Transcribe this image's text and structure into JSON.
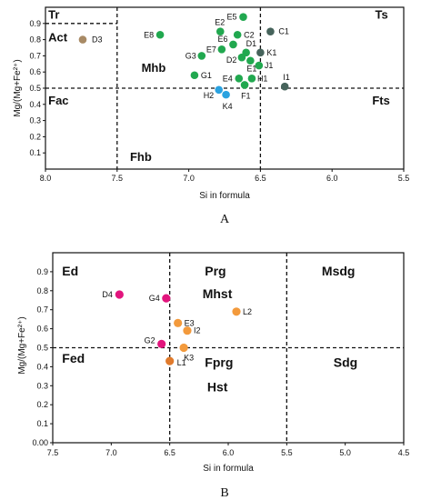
{
  "chart_data": [
    {
      "type": "scatter",
      "panel_label": "A",
      "xlabel": "Si in formula",
      "ylabel": "Mg/(Mg+Fe²⁺)",
      "xlim": [
        8.0,
        5.5
      ],
      "ylim": [
        0.0,
        1.0
      ],
      "x_ticks": [
        "8.0",
        "7.5",
        "7.0",
        "6.5",
        "6.0",
        "5.5"
      ],
      "y_ticks": [
        "0.1",
        "0.2",
        "0.3",
        "0.4",
        "0.5",
        "0.6",
        "0.7",
        "0.8",
        "0.9"
      ],
      "dividers": {
        "x": [
          7.5,
          6.5
        ],
        "y": 0.5,
        "tr_act_y": 0.9,
        "tr_act_x": [
          8.0,
          7.5
        ]
      },
      "regions": [
        {
          "text": "Tr",
          "x": 7.98,
          "y": 0.93
        },
        {
          "text": "Act",
          "x": 7.98,
          "y": 0.79
        },
        {
          "text": "Mhb",
          "x": 7.33,
          "y": 0.6
        },
        {
          "text": "Fac",
          "x": 7.98,
          "y": 0.4
        },
        {
          "text": "Fhb",
          "x": 7.41,
          "y": 0.05
        },
        {
          "text": "Ts",
          "x": 5.7,
          "y": 0.93
        },
        {
          "text": "Fts",
          "x": 5.72,
          "y": 0.4
        }
      ],
      "colors": {
        "green": "#21a84f",
        "gray": "#46635b",
        "blue": "#2aa2e0",
        "brown": "#a88a65"
      },
      "points": [
        {
          "label": "D3",
          "x": 7.74,
          "y": 0.8,
          "color": "brown",
          "lx": 10,
          "ly": 0
        },
        {
          "label": "E8",
          "x": 7.2,
          "y": 0.83,
          "color": "green",
          "lx": -18,
          "ly": 0
        },
        {
          "label": "E5",
          "x": 6.62,
          "y": 0.94,
          "color": "green",
          "lx": -18,
          "ly": 0
        },
        {
          "label": "E2",
          "x": 6.78,
          "y": 0.85,
          "color": "green",
          "lx": -6,
          "ly": -10
        },
        {
          "label": "C1",
          "x": 6.43,
          "y": 0.85,
          "color": "gray",
          "lx": 9,
          "ly": 0
        },
        {
          "label": "C2",
          "x": 6.66,
          "y": 0.83,
          "color": "green",
          "lx": 7,
          "ly": 0
        },
        {
          "label": "E6",
          "x": 6.69,
          "y": 0.77,
          "color": "green",
          "lx": -17,
          "ly": -6
        },
        {
          "label": "E7",
          "x": 6.77,
          "y": 0.74,
          "color": "green",
          "lx": -17,
          "ly": 0
        },
        {
          "label": "D1",
          "x": 6.6,
          "y": 0.72,
          "color": "green",
          "lx": 0,
          "ly": -10
        },
        {
          "label": "K1",
          "x": 6.5,
          "y": 0.72,
          "color": "gray",
          "lx": 7,
          "ly": 0
        },
        {
          "label": "D2",
          "x": 6.63,
          "y": 0.69,
          "color": "green",
          "lx": -17,
          "ly": 3
        },
        {
          "label": "G3",
          "x": 6.91,
          "y": 0.7,
          "color": "green",
          "lx": -18,
          "ly": 0
        },
        {
          "label": "E1",
          "x": 6.57,
          "y": 0.67,
          "color": "green",
          "lx": -4,
          "ly": 9
        },
        {
          "label": "J1",
          "x": 6.51,
          "y": 0.64,
          "color": "green",
          "lx": 6,
          "ly": 0
        },
        {
          "label": "G1",
          "x": 6.96,
          "y": 0.58,
          "color": "green",
          "lx": 7,
          "ly": 0
        },
        {
          "label": "E4",
          "x": 6.65,
          "y": 0.56,
          "color": "green",
          "lx": -18,
          "ly": 0
        },
        {
          "label": "H1",
          "x": 6.56,
          "y": 0.56,
          "color": "green",
          "lx": 6,
          "ly": 0
        },
        {
          "label": "I1",
          "x": 6.33,
          "y": 0.51,
          "color": "gray",
          "lx": -2,
          "ly": -10
        },
        {
          "label": "F1",
          "x": 6.61,
          "y": 0.52,
          "color": "green",
          "lx": -4,
          "ly": 12
        },
        {
          "label": "H2",
          "x": 6.79,
          "y": 0.49,
          "color": "blue",
          "lx": -17,
          "ly": 6
        },
        {
          "label": "K4",
          "x": 6.74,
          "y": 0.46,
          "color": "blue",
          "lx": -4,
          "ly": 13
        }
      ]
    },
    {
      "type": "scatter",
      "panel_label": "B",
      "xlabel": "Si in formula",
      "ylabel": "Mg/(Mg+Fe²⁺)",
      "xlim": [
        7.5,
        4.5
      ],
      "ylim": [
        0.0,
        1.0
      ],
      "x_ticks": [
        "7.5",
        "7.0",
        "6.5",
        "6.0",
        "5.5",
        "5.0",
        "4.5"
      ],
      "y_ticks": [
        "0.00",
        "0.1",
        "0.2",
        "0.3",
        "0.4",
        "0.5",
        "0.6",
        "0.7",
        "0.8",
        "0.9"
      ],
      "dividers": {
        "x": [
          6.5,
          5.5
        ],
        "y": 0.5
      },
      "regions": [
        {
          "text": "Ed",
          "x": 7.42,
          "y": 0.88
        },
        {
          "text": "Prg",
          "x": 6.2,
          "y": 0.88
        },
        {
          "text": "Mhst",
          "x": 6.22,
          "y": 0.76
        },
        {
          "text": "Msdg",
          "x": 5.2,
          "y": 0.88
        },
        {
          "text": "Fed",
          "x": 7.42,
          "y": 0.42
        },
        {
          "text": "Fprg",
          "x": 6.2,
          "y": 0.4
        },
        {
          "text": "Hst",
          "x": 6.18,
          "y": 0.27
        },
        {
          "text": "Sdg",
          "x": 5.1,
          "y": 0.4
        }
      ],
      "colors": {
        "magenta": "#e2157d",
        "orange": "#f39a3c",
        "darkorange": "#e07a2c"
      },
      "points": [
        {
          "label": "D4",
          "x": 6.93,
          "y": 0.78,
          "color": "magenta",
          "lx": -19,
          "ly": 0
        },
        {
          "label": "G4",
          "x": 6.53,
          "y": 0.76,
          "color": "magenta",
          "lx": -19,
          "ly": 0
        },
        {
          "label": "L2",
          "x": 5.93,
          "y": 0.69,
          "color": "orange",
          "lx": 7,
          "ly": 0
        },
        {
          "label": "E3",
          "x": 6.43,
          "y": 0.63,
          "color": "orange",
          "lx": 7,
          "ly": 0
        },
        {
          "label": "I2",
          "x": 6.35,
          "y": 0.59,
          "color": "orange",
          "lx": 7,
          "ly": 0
        },
        {
          "label": "G2",
          "x": 6.57,
          "y": 0.52,
          "color": "magenta",
          "lx": -19,
          "ly": -4
        },
        {
          "label": "K3",
          "x": 6.38,
          "y": 0.5,
          "color": "orange",
          "lx": 0,
          "ly": 11
        },
        {
          "label": "L1",
          "x": 6.5,
          "y": 0.43,
          "color": "darkorange",
          "lx": 8,
          "ly": 2
        }
      ]
    }
  ]
}
